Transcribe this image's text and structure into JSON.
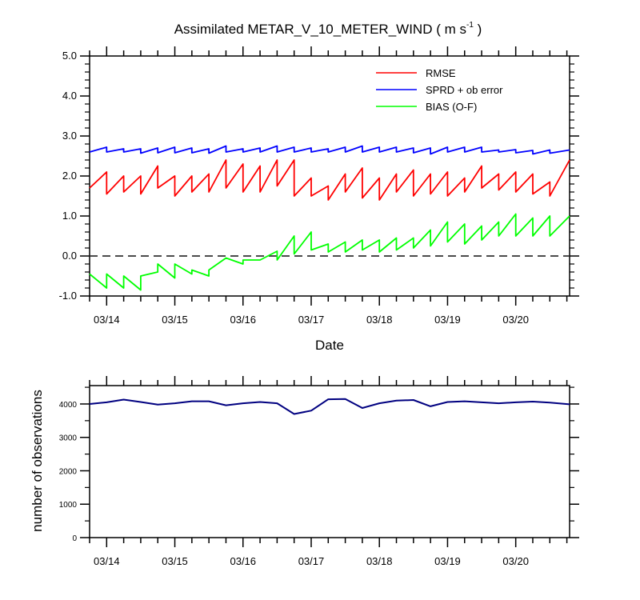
{
  "chart_data": [
    {
      "type": "line",
      "title_main": "Assimilated METAR_V_10_METER_WIND ( m s",
      "title_sup": "-1",
      "title_end": " )",
      "xlabel": "Date",
      "ylabel": "",
      "ylim": [
        -1.0,
        5.0
      ],
      "xlim": [
        0,
        7.04
      ],
      "yticks": [
        -1.0,
        0.0,
        1.0,
        2.0,
        3.0,
        4.0,
        5.0
      ],
      "ytick_labels": [
        "-1.0",
        "0.0",
        "1.0",
        "2.0",
        "3.0",
        "4.0",
        "5.0"
      ],
      "xtick_positions": [
        0.25,
        1.25,
        2.25,
        3.25,
        4.25,
        5.25,
        6.25
      ],
      "xtick_labels": [
        "03/14",
        "03/15",
        "03/16",
        "03/17",
        "03/18",
        "03/19",
        "03/20"
      ],
      "zero_line": 0.0,
      "legend_position": "top-right",
      "series": [
        {
          "name": "RMSE",
          "color": "#ff0000",
          "x": [
            0,
            0.25,
            0.25,
            0.5,
            0.5,
            0.75,
            0.75,
            1.0,
            1.0,
            1.25,
            1.25,
            1.5,
            1.5,
            1.75,
            1.75,
            2.0,
            2.0,
            2.25,
            2.25,
            2.5,
            2.5,
            2.75,
            2.75,
            3.0,
            3.0,
            3.25,
            3.25,
            3.5,
            3.5,
            3.75,
            3.75,
            4.0,
            4.0,
            4.25,
            4.25,
            4.5,
            4.5,
            4.75,
            4.75,
            5.0,
            5.0,
            5.25,
            5.25,
            5.5,
            5.5,
            5.75,
            5.75,
            6.0,
            6.0,
            6.25,
            6.25,
            6.5,
            6.5,
            6.75,
            6.75,
            7.04
          ],
          "values": [
            1.7,
            2.1,
            1.55,
            2.0,
            1.6,
            2.0,
            1.55,
            2.25,
            1.7,
            2.0,
            1.5,
            2.0,
            1.6,
            2.05,
            1.6,
            2.4,
            1.7,
            2.3,
            1.6,
            2.25,
            1.6,
            2.4,
            1.75,
            2.4,
            1.5,
            1.95,
            1.5,
            1.75,
            1.4,
            2.05,
            1.6,
            2.2,
            1.45,
            1.95,
            1.4,
            2.05,
            1.6,
            2.15,
            1.5,
            2.05,
            1.55,
            2.1,
            1.5,
            1.95,
            1.6,
            2.25,
            1.7,
            2.05,
            1.65,
            2.1,
            1.6,
            2.05,
            1.55,
            1.85,
            1.5,
            2.4
          ]
        },
        {
          "name": "SPRD + ob error",
          "color": "#0000ff",
          "x": [
            0,
            0.25,
            0.25,
            0.5,
            0.5,
            0.75,
            0.75,
            1.0,
            1.0,
            1.25,
            1.25,
            1.5,
            1.5,
            1.75,
            1.75,
            2.0,
            2.0,
            2.25,
            2.25,
            2.5,
            2.5,
            2.75,
            2.75,
            3.0,
            3.0,
            3.25,
            3.25,
            3.5,
            3.5,
            3.75,
            3.75,
            4.0,
            4.0,
            4.25,
            4.25,
            4.5,
            4.5,
            4.75,
            4.75,
            5.0,
            5.0,
            5.25,
            5.25,
            5.5,
            5.5,
            5.75,
            5.75,
            6.0,
            6.0,
            6.25,
            6.25,
            6.5,
            6.5,
            6.75,
            6.75,
            7.04
          ],
          "values": [
            2.6,
            2.72,
            2.6,
            2.68,
            2.6,
            2.68,
            2.57,
            2.7,
            2.58,
            2.72,
            2.58,
            2.7,
            2.58,
            2.68,
            2.57,
            2.75,
            2.6,
            2.68,
            2.6,
            2.7,
            2.6,
            2.75,
            2.6,
            2.72,
            2.6,
            2.7,
            2.6,
            2.68,
            2.6,
            2.72,
            2.6,
            2.75,
            2.6,
            2.72,
            2.6,
            2.72,
            2.6,
            2.7,
            2.58,
            2.7,
            2.55,
            2.72,
            2.6,
            2.72,
            2.6,
            2.72,
            2.6,
            2.65,
            2.6,
            2.66,
            2.58,
            2.64,
            2.55,
            2.65,
            2.57,
            2.65
          ]
        },
        {
          "name": "BIAS (O-F)",
          "color": "#00ff00",
          "x": [
            0,
            0.25,
            0.25,
            0.5,
            0.5,
            0.75,
            0.75,
            1.0,
            1.0,
            1.25,
            1.25,
            1.5,
            1.5,
            1.75,
            1.75,
            2.0,
            2.0,
            2.25,
            2.25,
            2.5,
            2.5,
            2.75,
            2.75,
            3.0,
            3.0,
            3.25,
            3.25,
            3.5,
            3.5,
            3.75,
            3.75,
            4.0,
            4.0,
            4.25,
            4.25,
            4.5,
            4.5,
            4.75,
            4.75,
            5.0,
            5.0,
            5.25,
            5.25,
            5.5,
            5.5,
            5.75,
            5.75,
            6.0,
            6.0,
            6.25,
            6.25,
            6.5,
            6.5,
            6.75,
            6.75,
            7.04
          ],
          "values": [
            -0.45,
            -0.8,
            -0.45,
            -0.8,
            -0.5,
            -0.85,
            -0.5,
            -0.4,
            -0.2,
            -0.55,
            -0.2,
            -0.45,
            -0.35,
            -0.5,
            -0.35,
            -0.05,
            -0.05,
            -0.2,
            -0.1,
            -0.1,
            -0.1,
            0.12,
            -0.1,
            0.5,
            0.05,
            0.6,
            0.15,
            0.3,
            0.1,
            0.35,
            0.1,
            0.4,
            0.15,
            0.4,
            0.1,
            0.45,
            0.15,
            0.45,
            0.2,
            0.65,
            0.25,
            0.85,
            0.35,
            0.8,
            0.3,
            0.75,
            0.4,
            0.85,
            0.5,
            1.05,
            0.5,
            0.95,
            0.5,
            1.0,
            0.5,
            1.0
          ]
        }
      ]
    },
    {
      "type": "line",
      "title": "",
      "xlabel": "",
      "ylabel": "number of observations",
      "ylim": [
        0,
        4550
      ],
      "xlim": [
        0,
        7.04
      ],
      "yticks": [
        0,
        1000,
        2000,
        3000,
        4000
      ],
      "ytick_labels": [
        "0",
        "1000",
        "2000",
        "3000",
        "4000"
      ],
      "xtick_positions": [
        0.25,
        1.25,
        2.25,
        3.25,
        4.25,
        5.25,
        6.25
      ],
      "xtick_labels": [
        "03/14",
        "03/15",
        "03/16",
        "03/17",
        "03/18",
        "03/19",
        "03/20"
      ],
      "series": [
        {
          "name": "observations",
          "color": "#000080",
          "x": [
            0,
            0.25,
            0.5,
            0.75,
            1.0,
            1.25,
            1.5,
            1.75,
            2.0,
            2.25,
            2.5,
            2.75,
            3.0,
            3.25,
            3.5,
            3.75,
            4.0,
            4.25,
            4.5,
            4.75,
            5.0,
            5.25,
            5.5,
            5.75,
            6.0,
            6.25,
            6.5,
            6.75,
            7.04
          ],
          "values": [
            4000,
            4050,
            4130,
            4060,
            3980,
            4020,
            4080,
            4080,
            3960,
            4020,
            4060,
            4020,
            3700,
            3800,
            4140,
            4150,
            3880,
            4020,
            4100,
            4120,
            3930,
            4060,
            4080,
            4050,
            4020,
            4050,
            4070,
            4040,
            3990
          ]
        }
      ]
    }
  ]
}
